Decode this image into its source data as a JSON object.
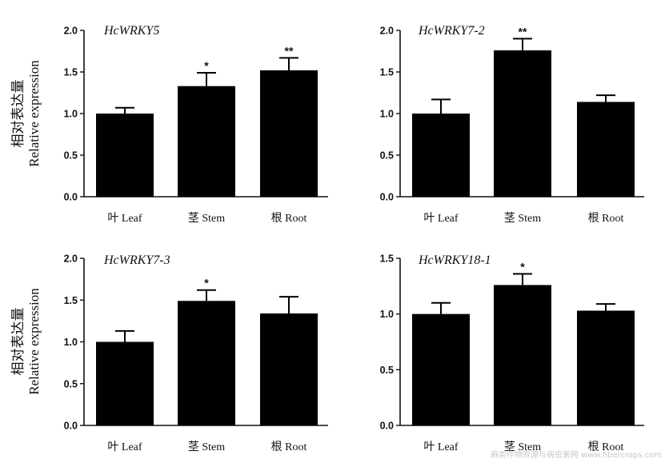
{
  "colors": {
    "bar": "#000000",
    "axis": "#111111",
    "background": "#ffffff"
  },
  "ylabel_lines": [
    "相对表达量",
    "Relative expression"
  ],
  "watermark": "麻类作物资源与病虫害网 www.fibercrops.com",
  "chart_data": [
    {
      "type": "bar",
      "title": "HcWRKY5",
      "categories": [
        "叶 Leaf",
        "茎 Stem",
        "根 Root"
      ],
      "values": [
        1.0,
        1.33,
        1.52
      ],
      "errors": [
        0.07,
        0.16,
        0.15
      ],
      "significance": [
        "",
        "*",
        "**"
      ],
      "ylim": [
        0,
        2.0
      ],
      "yticks": [
        "0.0",
        "0.5",
        "1.0",
        "1.5",
        "2.0"
      ],
      "xlabel": "",
      "ylabel": "相对表达量 Relative expression"
    },
    {
      "type": "bar",
      "title": "HcWRKY7-2",
      "categories": [
        "叶 Leaf",
        "茎 Stem",
        "根 Root"
      ],
      "values": [
        1.0,
        1.76,
        1.14
      ],
      "errors": [
        0.17,
        0.14,
        0.08
      ],
      "significance": [
        "",
        "**",
        ""
      ],
      "ylim": [
        0,
        2.0
      ],
      "yticks": [
        "0.0",
        "0.5",
        "1.0",
        "1.5",
        "2.0"
      ],
      "xlabel": "",
      "ylabel": ""
    },
    {
      "type": "bar",
      "title": "HcWRKY7-3",
      "categories": [
        "叶 Leaf",
        "茎 Stem",
        "根 Root"
      ],
      "values": [
        1.0,
        1.49,
        1.34
      ],
      "errors": [
        0.13,
        0.13,
        0.2
      ],
      "significance": [
        "",
        "*",
        ""
      ],
      "ylim": [
        0,
        2.0
      ],
      "yticks": [
        "0.0",
        "0.5",
        "1.0",
        "1.5",
        "2.0"
      ],
      "xlabel": "",
      "ylabel": "相对表达量 Relative expression"
    },
    {
      "type": "bar",
      "title": "HcWRKY18-1",
      "categories": [
        "叶 Leaf",
        "茎 Stem",
        "根 Root"
      ],
      "values": [
        1.0,
        1.26,
        1.03
      ],
      "errors": [
        0.1,
        0.1,
        0.06
      ],
      "significance": [
        "",
        "*",
        ""
      ],
      "ylim": [
        0,
        1.5
      ],
      "yticks": [
        "0.0",
        "0.5",
        "1.0",
        "1.5"
      ],
      "xlabel": "",
      "ylabel": ""
    }
  ]
}
